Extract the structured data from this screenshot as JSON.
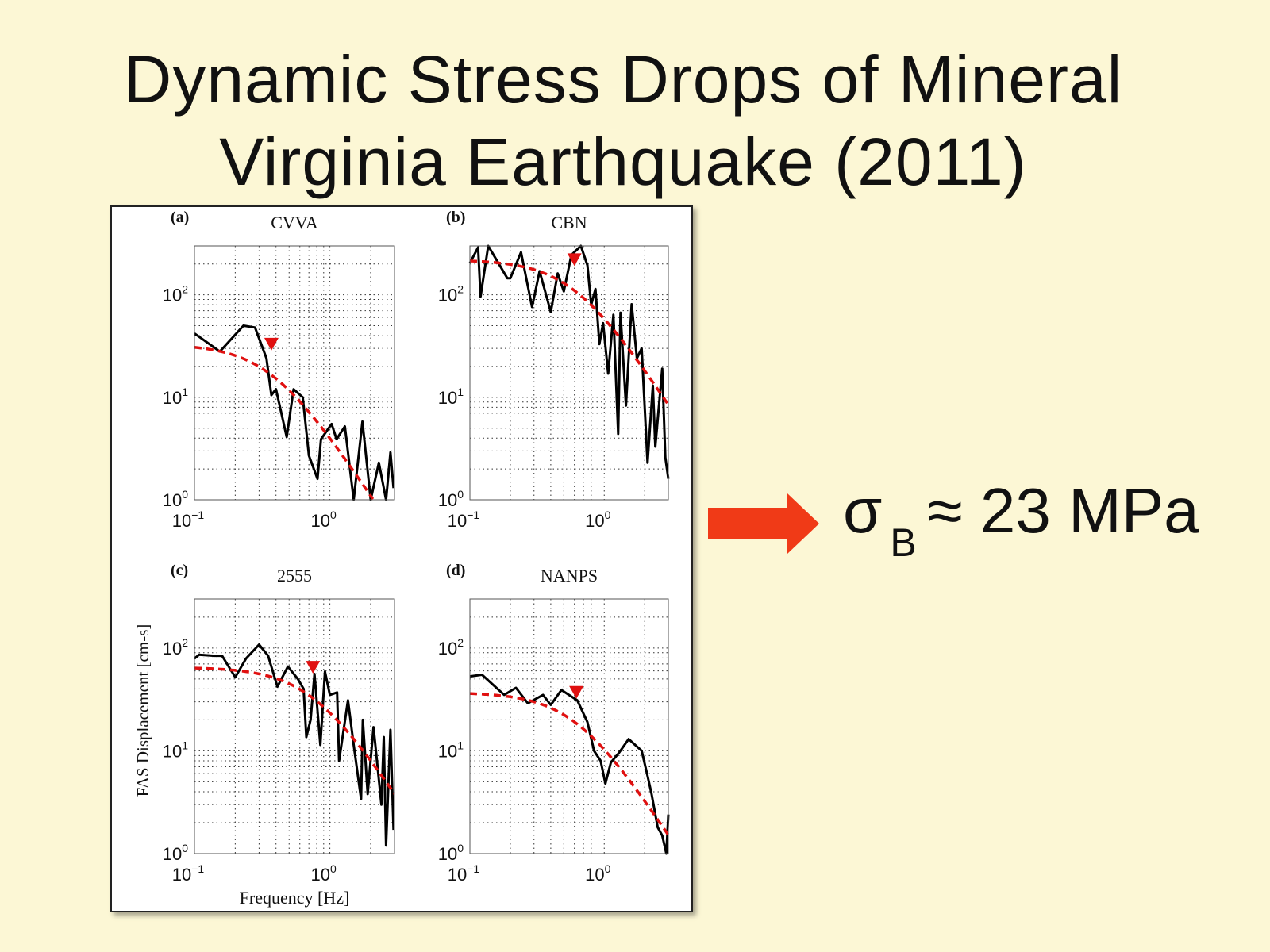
{
  "slide": {
    "title_line1": "Dynamic Stress Drops of Mineral",
    "title_line2": "Virginia Earthquake (2011)",
    "result": {
      "symbol": "σ",
      "subscript": "B",
      "relation": "≈",
      "value": "23 MPa"
    },
    "arrow_icon": "right-arrow",
    "colors": {
      "background": "#fcf7d5",
      "arrow": "#f03a17",
      "fit": "#e01010",
      "observed": "#000000"
    }
  },
  "chart_data": [
    {
      "type": "line",
      "panel_label": "(a)",
      "title": "CVVA",
      "xscale": "log",
      "yscale": "log",
      "xlim": [
        0.1,
        3
      ],
      "ylim": [
        1,
        300
      ],
      "xticks": [
        {
          "base": "10",
          "exp": "−1",
          "value": 0.1
        },
        {
          "base": "10",
          "exp": "0",
          "value": 1
        }
      ],
      "yticks": [
        {
          "base": "10",
          "exp": "0",
          "value": 1
        },
        {
          "base": "10",
          "exp": "1",
          "value": 10
        },
        {
          "base": "10",
          "exp": "2",
          "value": 100
        }
      ],
      "grid": true,
      "observed": {
        "x": [
          0.1,
          0.154,
          0.23,
          0.28,
          0.34,
          0.37,
          0.4,
          0.48,
          0.54,
          0.63,
          0.7,
          0.81,
          0.86,
          1.03,
          1.12,
          1.29,
          1.5,
          1.74,
          2.0,
          2.3,
          2.6,
          2.8,
          2.95
        ],
        "y": [
          42,
          28,
          50,
          48,
          24,
          10.5,
          12,
          4.1,
          12,
          10,
          2.7,
          1.6,
          3.9,
          5.5,
          3.9,
          5.2,
          1,
          5.8,
          1,
          2.3,
          1,
          2.9,
          1.3
        ]
      },
      "fit": {
        "omega0": 33,
        "fc": 0.37
      }
    },
    {
      "type": "line",
      "panel_label": "(b)",
      "title": "CBN",
      "xscale": "log",
      "yscale": "log",
      "xlim": [
        0.1,
        3
      ],
      "ylim": [
        1,
        300
      ],
      "xticks": [
        {
          "base": "10",
          "exp": "−1",
          "value": 0.1
        },
        {
          "base": "10",
          "exp": "0",
          "value": 1
        }
      ],
      "yticks": [
        {
          "base": "10",
          "exp": "0",
          "value": 1
        },
        {
          "base": "10",
          "exp": "1",
          "value": 10
        },
        {
          "base": "10",
          "exp": "2",
          "value": 100
        }
      ],
      "grid": true,
      "observed": {
        "x": [
          0.1,
          0.115,
          0.12,
          0.137,
          0.19,
          0.2,
          0.24,
          0.29,
          0.33,
          0.4,
          0.45,
          0.5,
          0.57,
          0.67,
          0.75,
          0.8,
          0.86,
          0.92,
          0.98,
          1.07,
          1.17,
          1.27,
          1.32,
          1.45,
          1.6,
          1.75,
          1.9,
          2.1,
          2.3,
          2.4,
          2.7,
          2.85,
          3.0
        ],
        "y": [
          204,
          290,
          96,
          300,
          145,
          145,
          260,
          76,
          170,
          68,
          162,
          108,
          245,
          300,
          194,
          80,
          114,
          33,
          53,
          17,
          64,
          4.4,
          67,
          8.3,
          81,
          24,
          30,
          2.3,
          13,
          3.3,
          19,
          2.6,
          1.6
        ]
      },
      "fit": {
        "omega0": 220,
        "fc": 0.6
      }
    },
    {
      "type": "line",
      "panel_label": "(c)",
      "title": "2555",
      "xscale": "log",
      "yscale": "log",
      "xlim": [
        0.1,
        3
      ],
      "ylim": [
        1,
        300
      ],
      "xticks": [
        {
          "base": "10",
          "exp": "−1",
          "value": 0.1
        },
        {
          "base": "10",
          "exp": "0",
          "value": 1
        }
      ],
      "yticks": [
        {
          "base": "10",
          "exp": "0",
          "value": 1
        },
        {
          "base": "10",
          "exp": "1",
          "value": 10
        },
        {
          "base": "10",
          "exp": "2",
          "value": 100
        }
      ],
      "grid": true,
      "ylabel": "FAS Displacement [cm-s]",
      "xlabel": "Frequency [Hz]",
      "observed": {
        "x": [
          0.1,
          0.108,
          0.14,
          0.16,
          0.2,
          0.24,
          0.3,
          0.35,
          0.41,
          0.49,
          0.58,
          0.64,
          0.67,
          0.72,
          0.77,
          0.85,
          0.92,
          1.0,
          1.13,
          1.17,
          1.36,
          1.5,
          1.7,
          1.75,
          1.9,
          2.1,
          2.4,
          2.5,
          2.6,
          2.8,
          2.95
        ],
        "y": [
          79,
          86,
          84,
          84,
          52,
          79,
          108,
          84,
          42,
          66,
          50,
          40,
          13.6,
          20,
          56,
          11.4,
          59,
          35,
          37,
          8,
          31,
          11.4,
          3.4,
          20,
          3.8,
          17,
          3,
          13.6,
          1.2,
          16,
          1.7
        ]
      },
      "fit": {
        "omega0": 65,
        "fc": 0.75
      }
    },
    {
      "type": "line",
      "panel_label": "(d)",
      "title": "NANPS",
      "xscale": "log",
      "yscale": "log",
      "xlim": [
        0.1,
        3
      ],
      "ylim": [
        1,
        300
      ],
      "xticks": [
        {
          "base": "10",
          "exp": "−1",
          "value": 0.1
        },
        {
          "base": "10",
          "exp": "0",
          "value": 1
        }
      ],
      "yticks": [
        {
          "base": "10",
          "exp": "0",
          "value": 1
        },
        {
          "base": "10",
          "exp": "1",
          "value": 10
        },
        {
          "base": "10",
          "exp": "2",
          "value": 100
        }
      ],
      "grid": true,
      "observed": {
        "x": [
          0.1,
          0.123,
          0.18,
          0.22,
          0.27,
          0.35,
          0.4,
          0.48,
          0.63,
          0.75,
          0.84,
          0.94,
          1.02,
          1.12,
          1.29,
          1.52,
          1.9,
          2.1,
          2.25,
          2.5,
          2.7,
          2.9,
          3.0
        ],
        "y": [
          53,
          55,
          35,
          41,
          29,
          35,
          28,
          39,
          31,
          19,
          10,
          8,
          4.8,
          7.7,
          9.6,
          13,
          10,
          5.7,
          3.8,
          1.8,
          1.5,
          1,
          2.4
        ]
      },
      "fit": {
        "omega0": 37,
        "fc": 0.62
      }
    }
  ]
}
